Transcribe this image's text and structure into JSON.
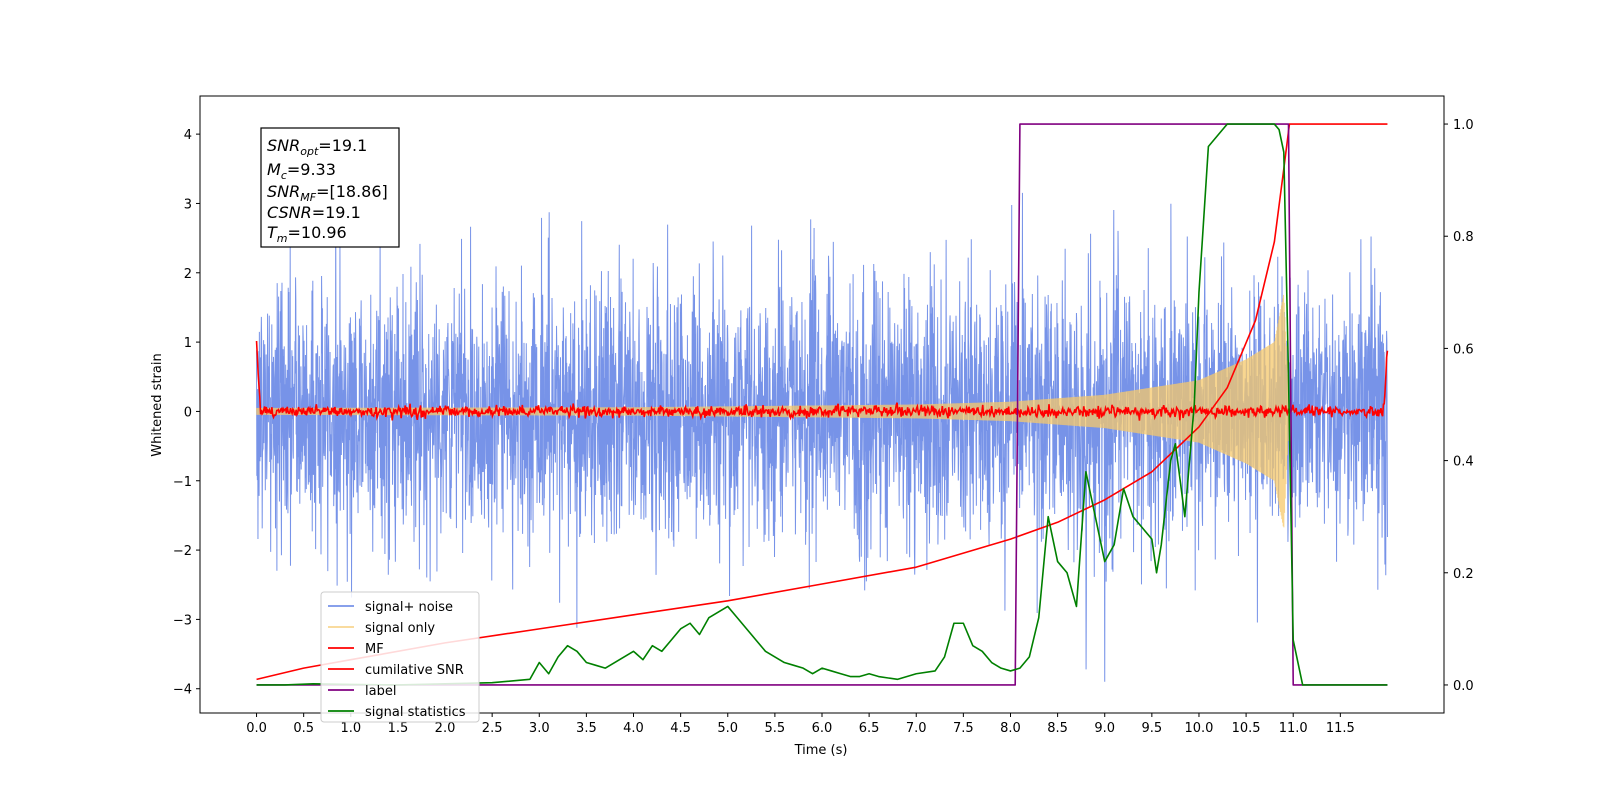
{
  "chart_data": {
    "type": "line",
    "xlabel": "Time (s)",
    "ylabel": "Whitened strain",
    "xlim": [
      -0.6,
      12.6
    ],
    "ylim": [
      -4.35,
      4.55
    ],
    "ylim_right": [
      -0.05,
      1.05
    ],
    "x_ticks": [
      "0.0",
      "0.5",
      "1.0",
      "1.5",
      "2.0",
      "2.5",
      "3.0",
      "3.5",
      "4.0",
      "4.5",
      "5.0",
      "5.5",
      "6.0",
      "6.5",
      "7.0",
      "7.5",
      "8.0",
      "8.5",
      "9.0",
      "9.5",
      "10.0",
      "10.5",
      "11.0",
      "11.5"
    ],
    "y_ticks": [
      "4",
      "3",
      "2",
      "1",
      "0",
      "−1",
      "−2",
      "−3",
      "−4"
    ],
    "y_ticks_right": [
      "1.0",
      "0.8",
      "0.6",
      "0.4",
      "0.2",
      "0.0"
    ],
    "legend_position": "lower-left",
    "annotation": {
      "lines": [
        {
          "base": "SNR",
          "sub": "opt",
          "value": "=19.1"
        },
        {
          "base": "M",
          "sub": "c",
          "value": "=9.33"
        },
        {
          "base": "SNR",
          "sub": "MF",
          "value": "=[18.86]"
        },
        {
          "base": "CSNR",
          "sub": "",
          "value": "=19.1"
        },
        {
          "base": "T",
          "sub": "m",
          "value": "=10.96"
        }
      ]
    },
    "series": [
      {
        "name": "signal+ noise",
        "axis": "left",
        "color": "#6b8ae6",
        "kind": "noise",
        "x_range": [
          0.0,
          12.0
        ],
        "amplitude_std": 0.95
      },
      {
        "name": "signal only",
        "axis": "left",
        "color": "#f5c86b",
        "kind": "chirp",
        "x_range": [
          0.0,
          11.0
        ],
        "envelope": {
          "x": [
            0.0,
            4.0,
            7.0,
            8.0,
            9.0,
            10.0,
            10.5,
            10.8,
            10.9,
            10.96
          ],
          "y": [
            0.05,
            0.06,
            0.1,
            0.14,
            0.24,
            0.45,
            0.75,
            1.0,
            1.7,
            0.0
          ]
        }
      },
      {
        "name": "MF",
        "axis": "left",
        "color": "#ff0000",
        "kind": "mf",
        "x_range": [
          0.0,
          12.0
        ],
        "start": 1.0,
        "end": 0.9,
        "noise_std": 0.04
      },
      {
        "name": "cumilative SNR",
        "axis": "right",
        "color": "#ff0000",
        "kind": "line",
        "x": [
          0.0,
          0.5,
          1.0,
          2.0,
          3.0,
          4.0,
          5.0,
          6.0,
          7.0,
          8.0,
          8.5,
          9.0,
          9.5,
          10.0,
          10.3,
          10.6,
          10.8,
          10.9,
          10.96,
          11.0,
          12.0
        ],
        "y": [
          0.01,
          0.03,
          0.045,
          0.075,
          0.1,
          0.125,
          0.15,
          0.18,
          0.21,
          0.26,
          0.29,
          0.33,
          0.38,
          0.46,
          0.53,
          0.65,
          0.79,
          0.92,
          1.0,
          1.0,
          1.0
        ]
      },
      {
        "name": "label",
        "axis": "right",
        "color": "#800080",
        "kind": "line",
        "x": [
          0.0,
          8.05,
          8.1,
          10.95,
          11.0,
          12.0
        ],
        "y": [
          0.0,
          0.0,
          1.0,
          1.0,
          0.0,
          0.0
        ]
      },
      {
        "name": "signal statistics",
        "axis": "right",
        "color": "#008000",
        "kind": "line",
        "x": [
          0.0,
          0.3,
          0.6,
          1.0,
          1.5,
          2.0,
          2.5,
          2.9,
          3.0,
          3.1,
          3.2,
          3.3,
          3.4,
          3.5,
          3.6,
          3.7,
          3.8,
          3.9,
          4.0,
          4.1,
          4.2,
          4.3,
          4.4,
          4.5,
          4.6,
          4.7,
          4.8,
          4.9,
          5.0,
          5.1,
          5.2,
          5.3,
          5.4,
          5.5,
          5.6,
          5.7,
          5.8,
          5.9,
          6.0,
          6.1,
          6.2,
          6.3,
          6.4,
          6.5,
          6.6,
          6.8,
          7.0,
          7.2,
          7.3,
          7.4,
          7.5,
          7.6,
          7.7,
          7.8,
          7.9,
          8.0,
          8.1,
          8.2,
          8.3,
          8.4,
          8.5,
          8.6,
          8.7,
          8.8,
          8.9,
          9.0,
          9.1,
          9.2,
          9.3,
          9.4,
          9.5,
          9.55,
          9.6,
          9.7,
          9.75,
          9.85,
          9.95,
          10.0,
          10.1,
          10.2,
          10.3,
          10.4,
          10.5,
          10.6,
          10.7,
          10.8,
          10.85,
          10.9,
          10.95,
          11.0,
          11.1,
          11.5,
          12.0
        ],
        "y": [
          0.0,
          0.0,
          0.002,
          0.001,
          0.0,
          0.002,
          0.004,
          0.01,
          0.04,
          0.02,
          0.05,
          0.07,
          0.06,
          0.04,
          0.035,
          0.03,
          0.04,
          0.05,
          0.06,
          0.045,
          0.07,
          0.06,
          0.08,
          0.1,
          0.11,
          0.09,
          0.12,
          0.13,
          0.14,
          0.12,
          0.1,
          0.08,
          0.06,
          0.05,
          0.04,
          0.035,
          0.03,
          0.02,
          0.03,
          0.025,
          0.02,
          0.015,
          0.015,
          0.02,
          0.015,
          0.01,
          0.02,
          0.025,
          0.05,
          0.11,
          0.11,
          0.07,
          0.06,
          0.04,
          0.03,
          0.025,
          0.03,
          0.05,
          0.12,
          0.3,
          0.22,
          0.2,
          0.14,
          0.38,
          0.3,
          0.22,
          0.25,
          0.35,
          0.3,
          0.28,
          0.26,
          0.2,
          0.25,
          0.4,
          0.43,
          0.3,
          0.5,
          0.7,
          0.96,
          0.98,
          1.0,
          1.0,
          1.0,
          1.0,
          1.0,
          1.0,
          0.99,
          0.95,
          0.55,
          0.08,
          0.0,
          0.0,
          0.0
        ]
      }
    ]
  }
}
